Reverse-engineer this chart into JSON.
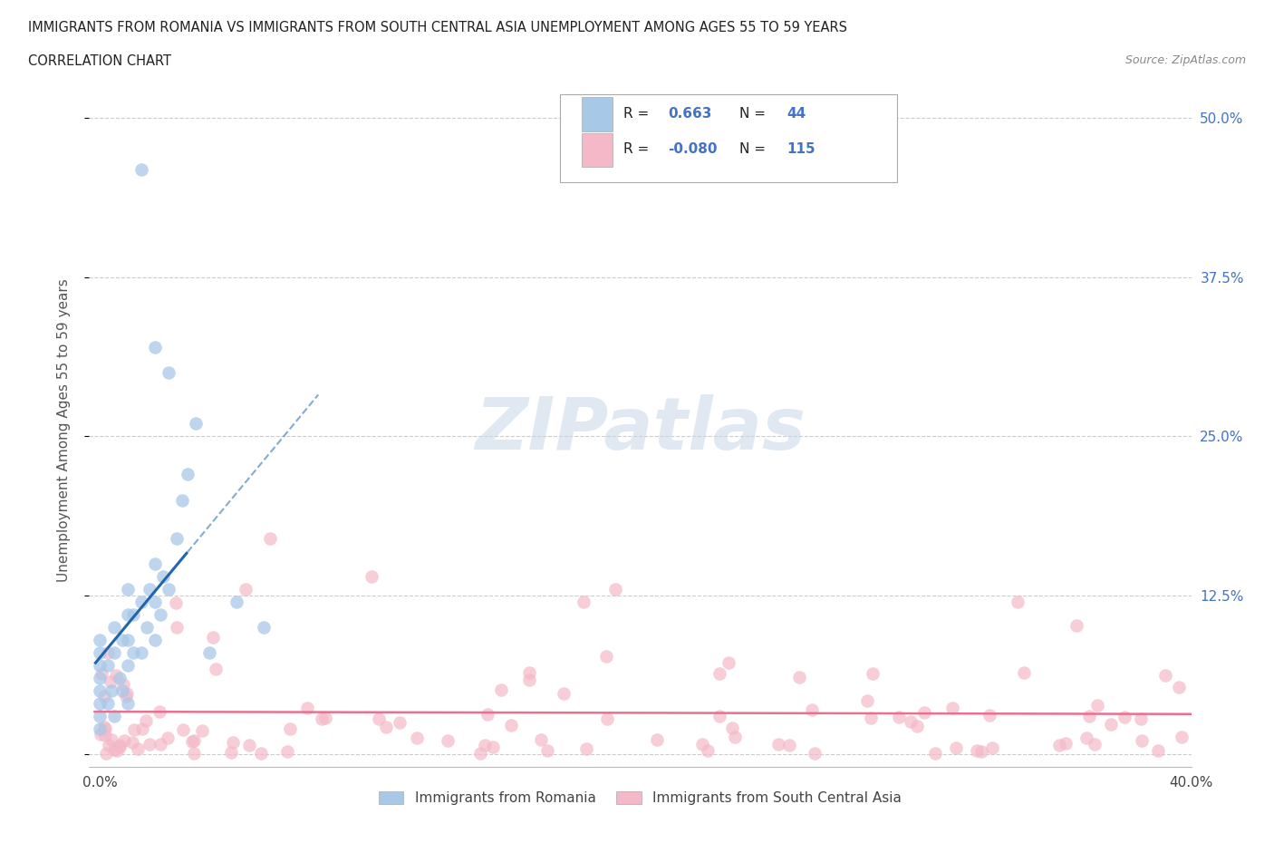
{
  "title_line1": "IMMIGRANTS FROM ROMANIA VS IMMIGRANTS FROM SOUTH CENTRAL ASIA UNEMPLOYMENT AMONG AGES 55 TO 59 YEARS",
  "title_line2": "CORRELATION CHART",
  "source": "Source: ZipAtlas.com",
  "ylabel": "Unemployment Among Ages 55 to 59 years",
  "watermark": "ZIPatlas",
  "legend_label1": "Immigrants from Romania",
  "legend_label2": "Immigrants from South Central Asia",
  "r1": 0.663,
  "n1": 44,
  "r2": -0.08,
  "n2": 115,
  "color1": "#a8c8e8",
  "color2": "#f4b8c8",
  "trendline1_color": "#2166ac",
  "trendline2_color": "#e87090",
  "xmin": 0.0,
  "xmax": 0.4,
  "ymin": 0.0,
  "ymax": 0.52,
  "ytick_values": [
    0.0,
    0.125,
    0.25,
    0.375,
    0.5
  ],
  "xtick_values": [
    0.0,
    0.1,
    0.2,
    0.3,
    0.4
  ],
  "xtick_labels": [
    "0.0%",
    "",
    "",
    "",
    "40.0%"
  ],
  "ytick_labels_right": [
    "",
    "12.5%",
    "25.0%",
    "37.5%",
    "50.0%"
  ]
}
